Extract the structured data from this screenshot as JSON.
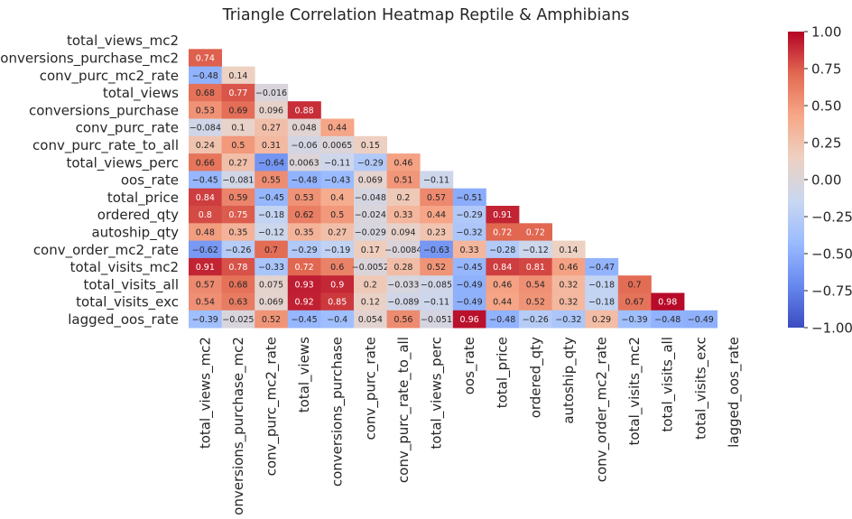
{
  "chart_data": {
    "type": "heatmap",
    "title": "Triangle Correlation Heatmap Reptile & Amphibians",
    "xlabel": "",
    "ylabel": "",
    "variables": [
      "total_views_mc2",
      "conversions_purchase_mc2",
      "conv_purc_mc2_rate",
      "total_views",
      "conversions_purchase",
      "conv_purc_rate",
      "conv_purc_rate_to_all",
      "total_views_perc",
      "oos_rate",
      "total_price",
      "ordered_qty",
      "autoship_qty",
      "conv_order_mc2_rate",
      "total_visits_mc2",
      "total_visits_all",
      "total_visits_exc",
      "lagged_oos_rate"
    ],
    "lower_triangle_values": [
      [],
      [
        0.74
      ],
      [
        -0.48,
        0.14
      ],
      [
        0.68,
        0.77,
        -0.016
      ],
      [
        0.53,
        0.69,
        0.096,
        0.88
      ],
      [
        -0.084,
        0.1,
        0.27,
        0.048,
        0.44
      ],
      [
        0.24,
        0.5,
        0.31,
        -0.06,
        0.0065,
        0.15
      ],
      [
        0.66,
        0.27,
        -0.64,
        0.0063,
        -0.11,
        -0.29,
        0.46
      ],
      [
        -0.45,
        -0.081,
        0.55,
        -0.48,
        -0.43,
        0.069,
        0.51,
        -0.11
      ],
      [
        0.84,
        0.59,
        -0.45,
        0.53,
        0.4,
        -0.048,
        0.2,
        0.57,
        -0.51
      ],
      [
        0.8,
        0.75,
        -0.18,
        0.62,
        0.5,
        -0.024,
        0.33,
        0.44,
        -0.29,
        0.91
      ],
      [
        0.48,
        0.35,
        -0.12,
        0.35,
        0.27,
        -0.029,
        0.094,
        0.23,
        -0.32,
        0.72,
        0.72
      ],
      [
        -0.62,
        -0.26,
        0.7,
        -0.29,
        -0.19,
        0.17,
        -0.0084,
        -0.63,
        0.33,
        -0.28,
        -0.12,
        0.14
      ],
      [
        0.91,
        0.78,
        -0.33,
        0.72,
        0.6,
        -0.0052,
        0.28,
        0.52,
        -0.45,
        0.84,
        0.81,
        0.46,
        -0.47
      ],
      [
        0.57,
        0.68,
        0.075,
        0.93,
        0.9,
        0.2,
        -0.033,
        -0.085,
        -0.49,
        0.46,
        0.54,
        0.32,
        -0.18,
        0.7
      ],
      [
        0.54,
        0.63,
        0.069,
        0.92,
        0.85,
        0.12,
        -0.089,
        -0.11,
        -0.49,
        0.44,
        0.52,
        0.32,
        -0.18,
        0.67,
        0.98
      ],
      [
        -0.39,
        -0.025,
        0.52,
        -0.45,
        -0.4,
        0.054,
        0.56,
        -0.051,
        0.96,
        -0.48,
        -0.26,
        -0.32,
        0.29,
        -0.39,
        -0.48,
        -0.49
      ]
    ],
    "colorscale": "coolwarm",
    "vmin": -1,
    "vmax": 1,
    "colorbar_ticks": [
      1.0,
      0.75,
      0.5,
      0.25,
      0.0,
      -0.25,
      -0.5,
      -0.75,
      -1.0
    ],
    "colorbar_tick_labels": [
      "1.00",
      "0.75",
      "0.50",
      "0.25",
      "0.00",
      "−0.25",
      "−0.50",
      "−0.75",
      "−1.00"
    ],
    "colorscale_stops": [
      "#3b4cc0",
      "#6788ee",
      "#9abbff",
      "#c9d7f0",
      "#edd1c2",
      "#f7a889",
      "#e26952",
      "#b40426"
    ]
  }
}
